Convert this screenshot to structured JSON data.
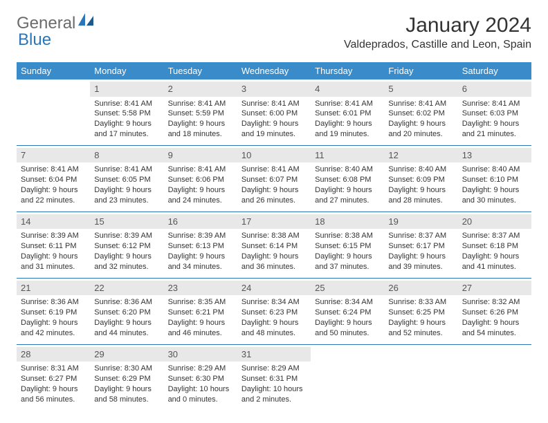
{
  "brand": {
    "part1": "General",
    "part2": "Blue"
  },
  "title": "January 2024",
  "location": "Valdeprados, Castille and Leon, Spain",
  "header_row_bg": "#3a8bc9",
  "daynum_bg": "#e8e8e8",
  "rule_color": "#2a76b8",
  "weekdays": [
    "Sunday",
    "Monday",
    "Tuesday",
    "Wednesday",
    "Thursday",
    "Friday",
    "Saturday"
  ],
  "weeks": [
    [
      {
        "day": "",
        "sunrise": "",
        "sunset": "",
        "daylight1": "",
        "daylight2": "",
        "empty": true
      },
      {
        "day": "1",
        "sunrise": "Sunrise: 8:41 AM",
        "sunset": "Sunset: 5:58 PM",
        "daylight1": "Daylight: 9 hours",
        "daylight2": "and 17 minutes."
      },
      {
        "day": "2",
        "sunrise": "Sunrise: 8:41 AM",
        "sunset": "Sunset: 5:59 PM",
        "daylight1": "Daylight: 9 hours",
        "daylight2": "and 18 minutes."
      },
      {
        "day": "3",
        "sunrise": "Sunrise: 8:41 AM",
        "sunset": "Sunset: 6:00 PM",
        "daylight1": "Daylight: 9 hours",
        "daylight2": "and 19 minutes."
      },
      {
        "day": "4",
        "sunrise": "Sunrise: 8:41 AM",
        "sunset": "Sunset: 6:01 PM",
        "daylight1": "Daylight: 9 hours",
        "daylight2": "and 19 minutes."
      },
      {
        "day": "5",
        "sunrise": "Sunrise: 8:41 AM",
        "sunset": "Sunset: 6:02 PM",
        "daylight1": "Daylight: 9 hours",
        "daylight2": "and 20 minutes."
      },
      {
        "day": "6",
        "sunrise": "Sunrise: 8:41 AM",
        "sunset": "Sunset: 6:03 PM",
        "daylight1": "Daylight: 9 hours",
        "daylight2": "and 21 minutes."
      }
    ],
    [
      {
        "day": "7",
        "sunrise": "Sunrise: 8:41 AM",
        "sunset": "Sunset: 6:04 PM",
        "daylight1": "Daylight: 9 hours",
        "daylight2": "and 22 minutes."
      },
      {
        "day": "8",
        "sunrise": "Sunrise: 8:41 AM",
        "sunset": "Sunset: 6:05 PM",
        "daylight1": "Daylight: 9 hours",
        "daylight2": "and 23 minutes."
      },
      {
        "day": "9",
        "sunrise": "Sunrise: 8:41 AM",
        "sunset": "Sunset: 6:06 PM",
        "daylight1": "Daylight: 9 hours",
        "daylight2": "and 24 minutes."
      },
      {
        "day": "10",
        "sunrise": "Sunrise: 8:41 AM",
        "sunset": "Sunset: 6:07 PM",
        "daylight1": "Daylight: 9 hours",
        "daylight2": "and 26 minutes."
      },
      {
        "day": "11",
        "sunrise": "Sunrise: 8:40 AM",
        "sunset": "Sunset: 6:08 PM",
        "daylight1": "Daylight: 9 hours",
        "daylight2": "and 27 minutes."
      },
      {
        "day": "12",
        "sunrise": "Sunrise: 8:40 AM",
        "sunset": "Sunset: 6:09 PM",
        "daylight1": "Daylight: 9 hours",
        "daylight2": "and 28 minutes."
      },
      {
        "day": "13",
        "sunrise": "Sunrise: 8:40 AM",
        "sunset": "Sunset: 6:10 PM",
        "daylight1": "Daylight: 9 hours",
        "daylight2": "and 30 minutes."
      }
    ],
    [
      {
        "day": "14",
        "sunrise": "Sunrise: 8:39 AM",
        "sunset": "Sunset: 6:11 PM",
        "daylight1": "Daylight: 9 hours",
        "daylight2": "and 31 minutes."
      },
      {
        "day": "15",
        "sunrise": "Sunrise: 8:39 AM",
        "sunset": "Sunset: 6:12 PM",
        "daylight1": "Daylight: 9 hours",
        "daylight2": "and 32 minutes."
      },
      {
        "day": "16",
        "sunrise": "Sunrise: 8:39 AM",
        "sunset": "Sunset: 6:13 PM",
        "daylight1": "Daylight: 9 hours",
        "daylight2": "and 34 minutes."
      },
      {
        "day": "17",
        "sunrise": "Sunrise: 8:38 AM",
        "sunset": "Sunset: 6:14 PM",
        "daylight1": "Daylight: 9 hours",
        "daylight2": "and 36 minutes."
      },
      {
        "day": "18",
        "sunrise": "Sunrise: 8:38 AM",
        "sunset": "Sunset: 6:15 PM",
        "daylight1": "Daylight: 9 hours",
        "daylight2": "and 37 minutes."
      },
      {
        "day": "19",
        "sunrise": "Sunrise: 8:37 AM",
        "sunset": "Sunset: 6:17 PM",
        "daylight1": "Daylight: 9 hours",
        "daylight2": "and 39 minutes."
      },
      {
        "day": "20",
        "sunrise": "Sunrise: 8:37 AM",
        "sunset": "Sunset: 6:18 PM",
        "daylight1": "Daylight: 9 hours",
        "daylight2": "and 41 minutes."
      }
    ],
    [
      {
        "day": "21",
        "sunrise": "Sunrise: 8:36 AM",
        "sunset": "Sunset: 6:19 PM",
        "daylight1": "Daylight: 9 hours",
        "daylight2": "and 42 minutes."
      },
      {
        "day": "22",
        "sunrise": "Sunrise: 8:36 AM",
        "sunset": "Sunset: 6:20 PM",
        "daylight1": "Daylight: 9 hours",
        "daylight2": "and 44 minutes."
      },
      {
        "day": "23",
        "sunrise": "Sunrise: 8:35 AM",
        "sunset": "Sunset: 6:21 PM",
        "daylight1": "Daylight: 9 hours",
        "daylight2": "and 46 minutes."
      },
      {
        "day": "24",
        "sunrise": "Sunrise: 8:34 AM",
        "sunset": "Sunset: 6:23 PM",
        "daylight1": "Daylight: 9 hours",
        "daylight2": "and 48 minutes."
      },
      {
        "day": "25",
        "sunrise": "Sunrise: 8:34 AM",
        "sunset": "Sunset: 6:24 PM",
        "daylight1": "Daylight: 9 hours",
        "daylight2": "and 50 minutes."
      },
      {
        "day": "26",
        "sunrise": "Sunrise: 8:33 AM",
        "sunset": "Sunset: 6:25 PM",
        "daylight1": "Daylight: 9 hours",
        "daylight2": "and 52 minutes."
      },
      {
        "day": "27",
        "sunrise": "Sunrise: 8:32 AM",
        "sunset": "Sunset: 6:26 PM",
        "daylight1": "Daylight: 9 hours",
        "daylight2": "and 54 minutes."
      }
    ],
    [
      {
        "day": "28",
        "sunrise": "Sunrise: 8:31 AM",
        "sunset": "Sunset: 6:27 PM",
        "daylight1": "Daylight: 9 hours",
        "daylight2": "and 56 minutes."
      },
      {
        "day": "29",
        "sunrise": "Sunrise: 8:30 AM",
        "sunset": "Sunset: 6:29 PM",
        "daylight1": "Daylight: 9 hours",
        "daylight2": "and 58 minutes."
      },
      {
        "day": "30",
        "sunrise": "Sunrise: 8:29 AM",
        "sunset": "Sunset: 6:30 PM",
        "daylight1": "Daylight: 10 hours",
        "daylight2": "and 0 minutes."
      },
      {
        "day": "31",
        "sunrise": "Sunrise: 8:29 AM",
        "sunset": "Sunset: 6:31 PM",
        "daylight1": "Daylight: 10 hours",
        "daylight2": "and 2 minutes."
      },
      {
        "day": "",
        "sunrise": "",
        "sunset": "",
        "daylight1": "",
        "daylight2": "",
        "empty": true
      },
      {
        "day": "",
        "sunrise": "",
        "sunset": "",
        "daylight1": "",
        "daylight2": "",
        "empty": true
      },
      {
        "day": "",
        "sunrise": "",
        "sunset": "",
        "daylight1": "",
        "daylight2": "",
        "empty": true
      }
    ]
  ]
}
